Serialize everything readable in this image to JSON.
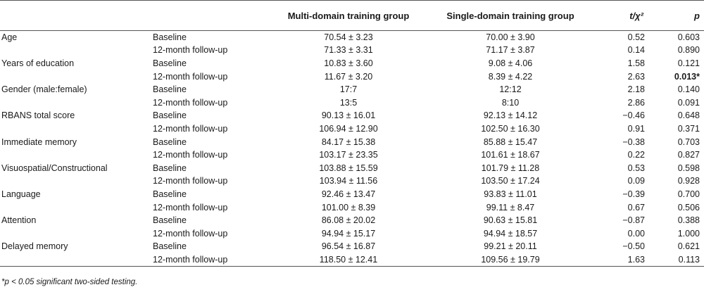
{
  "header": {
    "col_variable": "",
    "col_timepoint": "",
    "col_multi": "Multi-domain training group",
    "col_single": "Single-domain training group",
    "col_stat": "t/χ²",
    "col_p": "p"
  },
  "rows": [
    {
      "variable": "Age",
      "timepoint": "Baseline",
      "multi": "70.54 ± 3.23",
      "single": "70.00 ± 3.90",
      "stat": "0.52",
      "p": "0.603",
      "significant": false
    },
    {
      "variable": "",
      "timepoint": "12-month follow-up",
      "multi": "71.33 ± 3.31",
      "single": "71.17 ± 3.87",
      "stat": "0.14",
      "p": "0.890",
      "significant": false
    },
    {
      "variable": "Years of education",
      "timepoint": "Baseline",
      "multi": "10.83 ± 3.60",
      "single": "9.08 ± 4.06",
      "stat": "1.58",
      "p": "0.121",
      "significant": false
    },
    {
      "variable": "",
      "timepoint": "12-month follow-up",
      "multi": "11.67 ± 3.20",
      "single": "8.39 ± 4.22",
      "stat": "2.63",
      "p": "0.013*",
      "significant": true
    },
    {
      "variable": "Gender (male:female)",
      "timepoint": "Baseline",
      "multi": "17:7",
      "single": "12:12",
      "stat": "2.18",
      "p": "0.140",
      "significant": false
    },
    {
      "variable": "",
      "timepoint": "12-month follow-up",
      "multi": "13:5",
      "single": "8:10",
      "stat": "2.86",
      "p": "0.091",
      "significant": false
    },
    {
      "variable": "RBANS total score",
      "timepoint": "Baseline",
      "multi": "90.13 ± 16.01",
      "single": "92.13 ± 14.12",
      "stat": "−0.46",
      "p": "0.648",
      "significant": false
    },
    {
      "variable": "",
      "timepoint": "12-month follow-up",
      "multi": "106.94 ± 12.90",
      "single": "102.50 ± 16.30",
      "stat": "0.91",
      "p": "0.371",
      "significant": false
    },
    {
      "variable": "Immediate memory",
      "timepoint": "Baseline",
      "multi": "84.17 ± 15.38",
      "single": "85.88 ± 15.47",
      "stat": "−0.38",
      "p": "0.703",
      "significant": false
    },
    {
      "variable": "",
      "timepoint": "12-month follow-up",
      "multi": "103.17 ± 23.35",
      "single": "101.61 ± 18.67",
      "stat": "0.22",
      "p": "0.827",
      "significant": false
    },
    {
      "variable": "Visuospatial/Constructional",
      "timepoint": "Baseline",
      "multi": "103.88 ± 15.59",
      "single": "101.79 ± 11.28",
      "stat": "0.53",
      "p": "0.598",
      "significant": false
    },
    {
      "variable": "",
      "timepoint": "12-month follow-up",
      "multi": "103.94 ± 11.56",
      "single": "103.50 ± 17.24",
      "stat": "0.09",
      "p": "0.928",
      "significant": false
    },
    {
      "variable": "Language",
      "timepoint": "Baseline",
      "multi": "92.46 ± 13.47",
      "single": "93.83 ± 11.01",
      "stat": "−0.39",
      "p": "0.700",
      "significant": false
    },
    {
      "variable": "",
      "timepoint": "12-month follow-up",
      "multi": "101.00 ± 8.39",
      "single": "99.11 ± 8.47",
      "stat": "0.67",
      "p": "0.506",
      "significant": false
    },
    {
      "variable": "Attention",
      "timepoint": "Baseline",
      "multi": "86.08 ± 20.02",
      "single": "90.63 ± 15.81",
      "stat": "−0.87",
      "p": "0.388",
      "significant": false
    },
    {
      "variable": "",
      "timepoint": "12-month follow-up",
      "multi": "94.94 ± 15.17",
      "single": "94.94 ± 18.57",
      "stat": "0.00",
      "p": "1.000",
      "significant": false
    },
    {
      "variable": "Delayed memory",
      "timepoint": "Baseline",
      "multi": "96.54 ± 16.87",
      "single": "99.21 ± 20.11",
      "stat": "−0.50",
      "p": "0.621",
      "significant": false
    },
    {
      "variable": "",
      "timepoint": "12-month follow-up",
      "multi": "118.50 ± 12.41",
      "single": "109.56 ± 19.79",
      "stat": "1.63",
      "p": "0.113",
      "significant": false
    }
  ],
  "footnote": "*p < 0.05 significant two-sided testing."
}
